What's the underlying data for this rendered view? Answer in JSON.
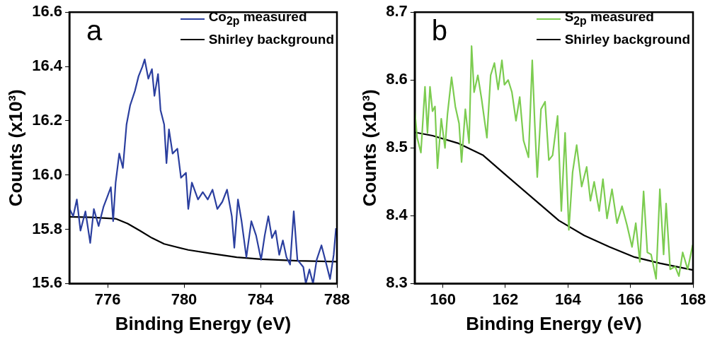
{
  "chart_data": [
    {
      "type": "line",
      "xlabel": "Binding Energy (eV)",
      "ylabel": "Counts (x10³)",
      "annotations": [
        "a"
      ],
      "xlim": [
        774,
        788
      ],
      "xticks": [
        776,
        780,
        784,
        788
      ],
      "ylim": [
        15.6,
        16.6
      ],
      "yticks": [
        15.6,
        15.8,
        {
          "value": 16.0,
          "label": "16.0"
        },
        16.2,
        16.4,
        16.6
      ],
      "grid": false,
      "legend": "top right",
      "series": [
        {
          "name": "Co$_{2p}$ measured",
          "color": "#2b3f9f",
          "x": [
            774.01,
            774.2,
            774.39,
            774.58,
            774.84,
            775.09,
            775.28,
            775.53,
            775.79,
            775.98,
            776.17,
            776.29,
            776.42,
            776.61,
            776.8,
            776.99,
            777.18,
            777.43,
            777.62,
            777.82,
            777.94,
            778.13,
            778.32,
            778.45,
            778.64,
            778.77,
            778.96,
            779.08,
            779.21,
            779.4,
            779.65,
            779.84,
            780.1,
            780.22,
            780.41,
            780.73,
            780.98,
            781.24,
            781.49,
            781.74,
            782.0,
            782.25,
            782.5,
            782.63,
            782.82,
            783.01,
            783.26,
            783.52,
            783.77,
            784.03,
            784.22,
            784.41,
            784.6,
            784.79,
            784.98,
            785.17,
            785.36,
            785.55,
            785.74,
            785.93,
            786.24,
            786.37,
            786.56,
            786.75,
            786.94,
            787.19,
            787.45,
            787.64,
            787.83,
            787.95
          ],
          "values": [
            15.875,
            15.848,
            15.91,
            15.795,
            15.866,
            15.75,
            15.875,
            15.812,
            15.884,
            15.919,
            15.955,
            15.83,
            15.972,
            16.079,
            16.026,
            16.186,
            16.257,
            16.31,
            16.364,
            16.399,
            16.426,
            16.355,
            16.39,
            16.292,
            16.372,
            16.239,
            16.186,
            16.044,
            16.168,
            16.079,
            16.097,
            15.99,
            16.008,
            15.875,
            15.972,
            15.91,
            15.937,
            15.91,
            15.946,
            15.875,
            15.901,
            15.946,
            15.848,
            15.732,
            15.91,
            15.83,
            15.697,
            15.83,
            15.777,
            15.688,
            15.777,
            15.848,
            15.768,
            15.795,
            15.706,
            15.759,
            15.697,
            15.67,
            15.866,
            15.688,
            15.661,
            15.6,
            15.652,
            15.6,
            15.688,
            15.741,
            15.67,
            15.617,
            15.706,
            15.804
          ]
        },
        {
          "name": "Shirley background",
          "color": "#000000",
          "x": [
            774.0,
            775.15,
            776.42,
            777.05,
            777.69,
            778.32,
            778.96,
            780.22,
            781.49,
            782.76,
            784.03,
            785.93,
            788.0
          ],
          "values": [
            15.846,
            15.844,
            15.839,
            15.821,
            15.795,
            15.768,
            15.746,
            15.724,
            15.71,
            15.697,
            15.69,
            15.684,
            15.681
          ]
        }
      ]
    },
    {
      "type": "line",
      "xlabel": "Binding Energy (eV)",
      "ylabel": "Counts (x10³)",
      "annotations": [
        "b"
      ],
      "xlim": [
        159.1,
        168
      ],
      "xticks": [
        160,
        162,
        164,
        166,
        168
      ],
      "ylim": [
        8.3,
        8.7
      ],
      "yticks": [
        8.3,
        8.4,
        8.5,
        8.6,
        8.7
      ],
      "grid": false,
      "legend": "top right",
      "series": [
        {
          "name": "S$_{2p}$ measured",
          "color": "#7ccc50",
          "x": [
            159.1,
            159.18,
            159.3,
            159.43,
            159.51,
            159.59,
            159.67,
            159.75,
            159.83,
            159.95,
            160.07,
            160.15,
            160.28,
            160.4,
            160.52,
            160.6,
            160.72,
            160.84,
            160.92,
            161.0,
            161.12,
            161.24,
            161.41,
            161.53,
            161.65,
            161.77,
            161.89,
            161.97,
            162.09,
            162.21,
            162.34,
            162.46,
            162.58,
            162.74,
            162.86,
            162.94,
            163.02,
            163.14,
            163.27,
            163.39,
            163.51,
            163.67,
            163.79,
            163.91,
            164.03,
            164.15,
            164.28,
            164.44,
            164.6,
            164.72,
            164.84,
            165.0,
            165.12,
            165.25,
            165.41,
            165.57,
            165.73,
            165.89,
            166.05,
            166.17,
            166.3,
            166.42,
            166.54,
            166.66,
            166.82,
            166.94,
            167.06,
            167.14,
            167.27,
            167.43,
            167.55,
            167.67,
            167.83,
            167.99
          ],
          "values": [
            8.557,
            8.515,
            8.493,
            8.59,
            8.522,
            8.59,
            8.554,
            8.561,
            8.47,
            8.543,
            8.5,
            8.55,
            8.604,
            8.561,
            8.536,
            8.479,
            8.557,
            8.507,
            8.65,
            8.582,
            8.607,
            8.572,
            8.515,
            8.607,
            8.625,
            8.586,
            8.629,
            8.593,
            8.6,
            8.582,
            8.54,
            8.575,
            8.511,
            8.486,
            8.629,
            8.536,
            8.457,
            8.557,
            8.568,
            8.482,
            8.489,
            8.547,
            8.407,
            8.522,
            8.379,
            8.464,
            8.504,
            8.443,
            8.472,
            8.422,
            8.45,
            8.407,
            8.454,
            8.396,
            8.439,
            8.389,
            8.414,
            8.386,
            8.354,
            8.389,
            8.332,
            8.436,
            8.346,
            8.343,
            8.307,
            8.439,
            8.343,
            8.418,
            8.321,
            8.325,
            8.311,
            8.346,
            8.321,
            8.357
          ]
        },
        {
          "name": "Shirley background",
          "color": "#000000",
          "x": [
            159.1,
            159.67,
            160.48,
            161.29,
            162.09,
            162.9,
            163.71,
            164.52,
            165.33,
            166.13,
            166.94,
            167.99
          ],
          "values": [
            8.523,
            8.518,
            8.507,
            8.489,
            8.457,
            8.425,
            8.393,
            8.371,
            8.354,
            8.339,
            8.33,
            8.32
          ]
        }
      ]
    }
  ]
}
